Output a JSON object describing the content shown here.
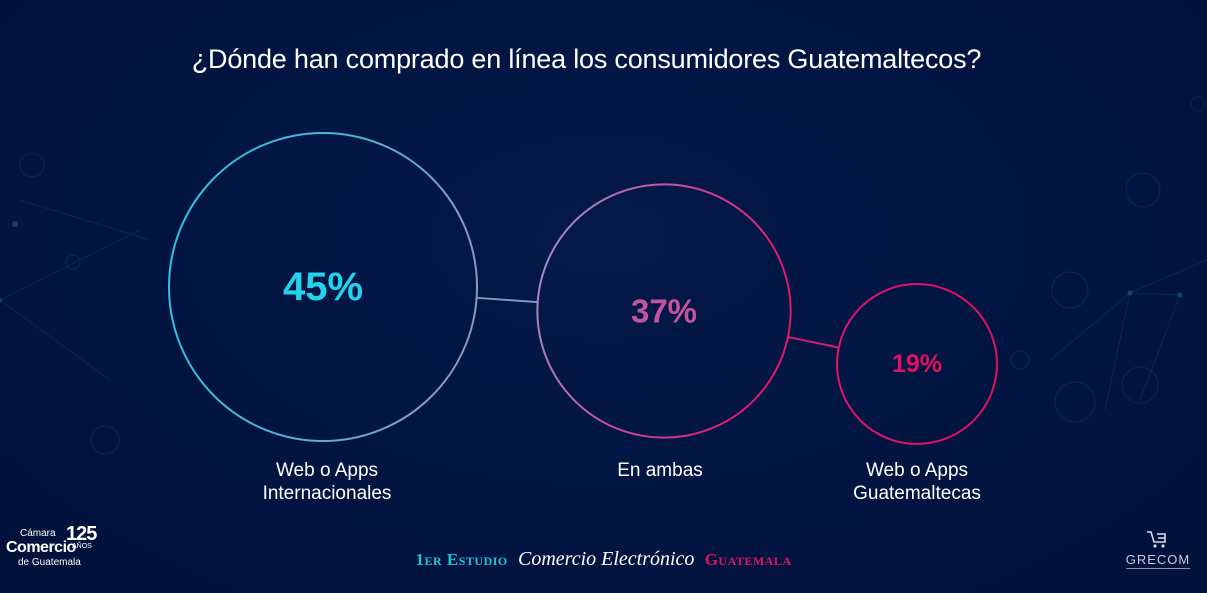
{
  "title": "¿Dónde han comprado en línea los consumidores Guatemaltecos?",
  "chart_data": {
    "type": "bubble",
    "title": "¿Dónde han comprado en línea los consumidores Guatemaltecos?",
    "categories": [
      "Web o Apps Internacionales",
      "En ambas",
      "Web o Apps Guatemaltecas"
    ],
    "values": [
      45,
      37,
      19
    ],
    "value_labels": [
      "45%",
      "37%",
      "19%"
    ],
    "label_lines": [
      [
        "Web o Apps",
        "Internacionales"
      ],
      [
        "En ambas"
      ],
      [
        "Web o Apps",
        "Guatemaltecas"
      ]
    ],
    "colors": [
      "#23d3ec",
      "#c4549a",
      "#e3125c"
    ],
    "stroke_gradient": [
      "#23c6e0",
      "#8e98c8",
      "#c44a9a",
      "#e01060"
    ],
    "connected": true,
    "grid": false,
    "legend": "none"
  },
  "footer": {
    "left_logo": {
      "line1": "Cámara",
      "line2": "Comercio",
      "line3": "de Guatemala",
      "years": "125",
      "years_label": "AÑOS"
    },
    "study": {
      "part1": "1er Estudio",
      "part2": "Comercio Electrónico",
      "part3": "Guatemala"
    },
    "right_logo": {
      "brand": "GRECOM",
      "icon": "shopping-cart-icon"
    }
  },
  "colors": {
    "background": "#021541",
    "text": "#ffffff",
    "accent_cyan": "#23d3ec",
    "accent_pink": "#e3125c"
  }
}
